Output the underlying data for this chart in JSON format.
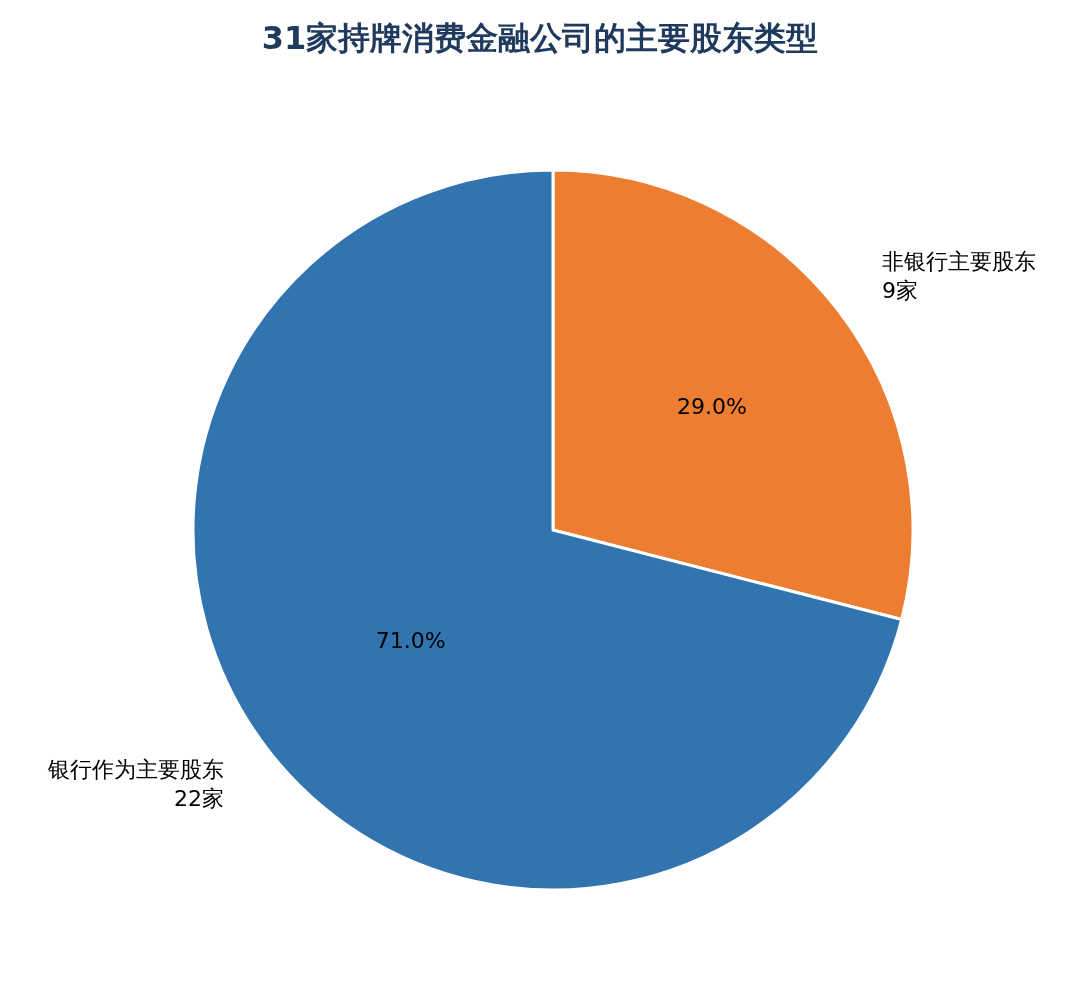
{
  "chart_data": {
    "type": "pie",
    "title": "31家持牌消费金融公司的主要股东类型",
    "categories": [
      "非银行主要股东\n9家",
      "银行作为主要股东\n22家"
    ],
    "values": [
      29.0,
      71.0
    ],
    "value_labels": [
      "29.0%",
      "71.0%"
    ],
    "colors": [
      "#ed7d31",
      "#3174b0"
    ],
    "legend": false
  }
}
